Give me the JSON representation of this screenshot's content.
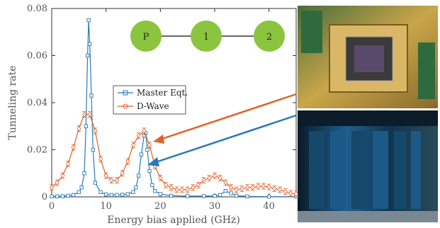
{
  "chart_data": {
    "type": "line",
    "title": "",
    "xlabel": "Energy bias applied (GHz)",
    "ylabel": "Tunneling rate",
    "xlim": [
      0,
      45
    ],
    "ylim": [
      0,
      0.08
    ],
    "xticks": [
      "0",
      "10",
      "20",
      "30",
      "40"
    ],
    "yticks": [
      "0",
      "0.02",
      "0.04",
      "0.06",
      "0.08"
    ],
    "grid": false,
    "legend": "center-left",
    "series": [
      {
        "name": "Master Eqt.",
        "color": "#2a7ab8",
        "marker": "square",
        "x": [
          0,
          1,
          2,
          3,
          4,
          5,
          5.5,
          6,
          6.3,
          6.6,
          6.8,
          7,
          7.3,
          7.6,
          8,
          9,
          10,
          11,
          12,
          13,
          14,
          15,
          15.5,
          16,
          16.5,
          17,
          17.3,
          17.6,
          18,
          18.5,
          19,
          20,
          22,
          25,
          28,
          30,
          31,
          32,
          33,
          34,
          36,
          40,
          45
        ],
        "y": [
          0.0002,
          0.0002,
          0.0003,
          0.0005,
          0.0008,
          0.002,
          0.004,
          0.01,
          0.03,
          0.06,
          0.075,
          0.065,
          0.043,
          0.02,
          0.006,
          0.002,
          0.001,
          0.0008,
          0.0008,
          0.0009,
          0.0012,
          0.002,
          0.004,
          0.009,
          0.018,
          0.026,
          0.027,
          0.02,
          0.011,
          0.005,
          0.0025,
          0.0012,
          0.0005,
          0.0003,
          0.0003,
          0.0004,
          0.0008,
          0.0025,
          0.0015,
          0.0005,
          0.0002,
          0.0001,
          0.0001
        ]
      },
      {
        "name": "D-Wave",
        "color": "#e0622a",
        "marker": "circle",
        "x": [
          0,
          1,
          2,
          3,
          4,
          5,
          6,
          7,
          8,
          9,
          10,
          11,
          12,
          13,
          14,
          15,
          16,
          17,
          18,
          19,
          20,
          21,
          22,
          23,
          24,
          25,
          26,
          27,
          28,
          29,
          30,
          31,
          32,
          33,
          34,
          35,
          36,
          37,
          38,
          39,
          40,
          41,
          42,
          43,
          44,
          45
        ],
        "y": [
          0.004,
          0.006,
          0.009,
          0.014,
          0.021,
          0.029,
          0.035,
          0.035,
          0.028,
          0.016,
          0.009,
          0.007,
          0.007,
          0.01,
          0.015,
          0.022,
          0.026,
          0.028,
          0.022,
          0.013,
          0.008,
          0.005,
          0.004,
          0.003,
          0.003,
          0.003,
          0.004,
          0.005,
          0.007,
          0.008,
          0.009,
          0.008,
          0.006,
          0.004,
          0.003,
          0.0035,
          0.004,
          0.004,
          0.0045,
          0.0045,
          0.0042,
          0.0035,
          0.003,
          0.0022,
          0.0015,
          0.0012
        ]
      }
    ],
    "graph_nodes": [
      "P",
      "1",
      "2"
    ],
    "node_color": "#8bc53f",
    "arrow_color_orange": "#e0622a",
    "arrow_color_blue": "#2a7ab8"
  }
}
